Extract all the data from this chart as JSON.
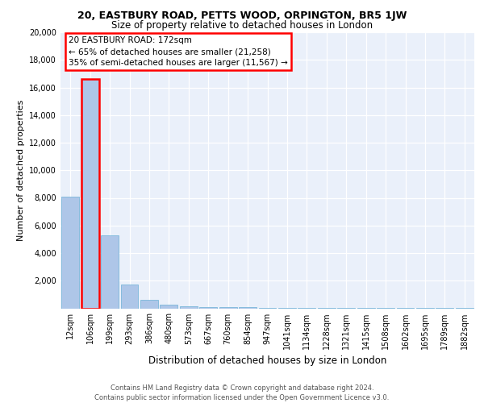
{
  "title1": "20, EASTBURY ROAD, PETTS WOOD, ORPINGTON, BR5 1JW",
  "title2": "Size of property relative to detached houses in London",
  "xlabel": "Distribution of detached houses by size in London",
  "ylabel": "Number of detached properties",
  "annotation_line1": "20 EASTBURY ROAD: 172sqm",
  "annotation_line2": "← 65% of detached houses are smaller (21,258)",
  "annotation_line3": "35% of semi-detached houses are larger (11,567) →",
  "footer1": "Contains HM Land Registry data © Crown copyright and database right 2024.",
  "footer2": "Contains public sector information licensed under the Open Government Licence v3.0.",
  "bar_color": "#aec6e8",
  "bar_edge_color": "#6aafd6",
  "annotation_box_color": "#ff0000",
  "marker_bar_index": 1,
  "categories": [
    "12sqm",
    "106sqm",
    "199sqm",
    "293sqm",
    "386sqm",
    "480sqm",
    "573sqm",
    "667sqm",
    "760sqm",
    "854sqm",
    "947sqm",
    "1041sqm",
    "1134sqm",
    "1228sqm",
    "1321sqm",
    "1415sqm",
    "1508sqm",
    "1602sqm",
    "1695sqm",
    "1789sqm",
    "1882sqm"
  ],
  "values": [
    8100,
    16600,
    5300,
    1750,
    600,
    280,
    160,
    100,
    80,
    60,
    40,
    30,
    20,
    15,
    12,
    10,
    8,
    7,
    6,
    5,
    4
  ],
  "ylim": [
    0,
    20000
  ],
  "yticks": [
    0,
    2000,
    4000,
    6000,
    8000,
    10000,
    12000,
    14000,
    16000,
    18000,
    20000
  ],
  "bg_color": "#eaf0fa",
  "grid_color": "#ffffff",
  "title1_fontsize": 9,
  "title2_fontsize": 8.5,
  "footer_fontsize": 6.0,
  "ylabel_fontsize": 8,
  "xlabel_fontsize": 8.5,
  "tick_fontsize": 7,
  "annot_fontsize": 7.5
}
